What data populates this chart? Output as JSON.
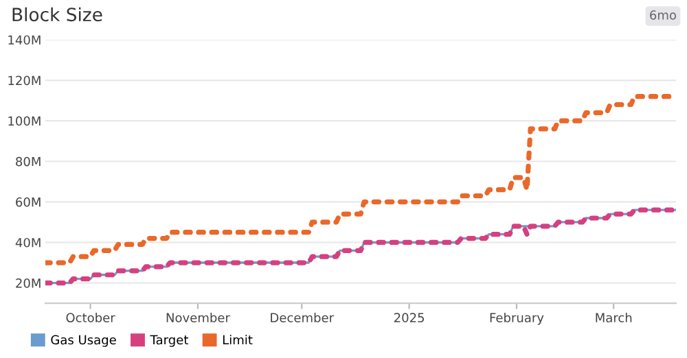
{
  "chart_data": {
    "type": "line",
    "title": "Block Size",
    "annotations": [
      "6mo"
    ],
    "x": [
      "2024-09-18",
      "2024-09-25",
      "2024-09-26",
      "2024-10-01",
      "2024-10-02",
      "2024-10-08",
      "2024-10-09",
      "2024-10-16",
      "2024-10-17",
      "2024-10-23",
      "2024-10-24",
      "2024-12-03",
      "2024-12-04",
      "2024-12-11",
      "2024-12-12",
      "2024-12-18",
      "2024-12-19",
      "2025-01-15",
      "2025-01-16",
      "2025-01-23",
      "2025-01-24",
      "2025-01-30",
      "2025-01-31",
      "2025-02-03",
      "2025-02-04",
      "2025-02-05",
      "2025-02-12",
      "2025-02-13",
      "2025-02-20",
      "2025-02-21",
      "2025-02-27",
      "2025-02-28",
      "2025-03-06",
      "2025-03-07",
      "2025-03-19"
    ],
    "series": [
      {
        "name": "Gas Usage",
        "color": "#6a9bd1",
        "line_style": "solid",
        "values": [
          20000000,
          20000000,
          22000000,
          22000000,
          24000000,
          24000000,
          26000000,
          26000000,
          28000000,
          28000000,
          30000000,
          30000000,
          33000000,
          33000000,
          36000000,
          36000000,
          40000000,
          40000000,
          42000000,
          42000000,
          44000000,
          44000000,
          48000000,
          48000000,
          48000000,
          48000000,
          48000000,
          50000000,
          50000000,
          52000000,
          52000000,
          54000000,
          54000000,
          56000000,
          56000000
        ]
      },
      {
        "name": "Target",
        "color": "#d6407f",
        "line_style": "dotted",
        "values": [
          20000000,
          20000000,
          22000000,
          22000000,
          24000000,
          24000000,
          26000000,
          26000000,
          28000000,
          28000000,
          30000000,
          30000000,
          33000000,
          33000000,
          36000000,
          36000000,
          40000000,
          40000000,
          42000000,
          42000000,
          44000000,
          44000000,
          48000000,
          48000000,
          44000000,
          48000000,
          48000000,
          50000000,
          50000000,
          52000000,
          52000000,
          54000000,
          54000000,
          56000000,
          56000000
        ]
      },
      {
        "name": "Limit",
        "color": "#e8692a",
        "line_style": "dotted",
        "values": [
          30000000,
          30000000,
          33000000,
          33000000,
          36000000,
          36000000,
          39000000,
          39000000,
          42000000,
          42000000,
          45000000,
          45000000,
          50000000,
          50000000,
          54000000,
          54000000,
          60000000,
          60000000,
          63000000,
          63000000,
          66000000,
          66000000,
          72000000,
          72000000,
          66000000,
          96000000,
          96000000,
          100000000,
          100000000,
          104000000,
          104000000,
          108000000,
          108000000,
          112000000,
          112000000
        ]
      }
    ],
    "xlim": [
      "2024-09-18",
      "2025-03-19"
    ],
    "xticks": [
      {
        "value": "2024-10-01",
        "label": "October"
      },
      {
        "value": "2024-11-01",
        "label": "November"
      },
      {
        "value": "2024-12-01",
        "label": "December"
      },
      {
        "value": "2025-01-01",
        "label": "2025"
      },
      {
        "value": "2025-02-01",
        "label": "February"
      },
      {
        "value": "2025-03-01",
        "label": "March"
      }
    ],
    "ylim": [
      10000000,
      140000000
    ],
    "yticks": [
      {
        "value": 20000000,
        "label": "20M"
      },
      {
        "value": 40000000,
        "label": "40M"
      },
      {
        "value": 60000000,
        "label": "60M"
      },
      {
        "value": 80000000,
        "label": "80M"
      },
      {
        "value": 100000000,
        "label": "100M"
      },
      {
        "value": 120000000,
        "label": "120M"
      },
      {
        "value": 140000000,
        "label": "140M"
      }
    ],
    "grid": "y",
    "legend": "bottom left"
  }
}
